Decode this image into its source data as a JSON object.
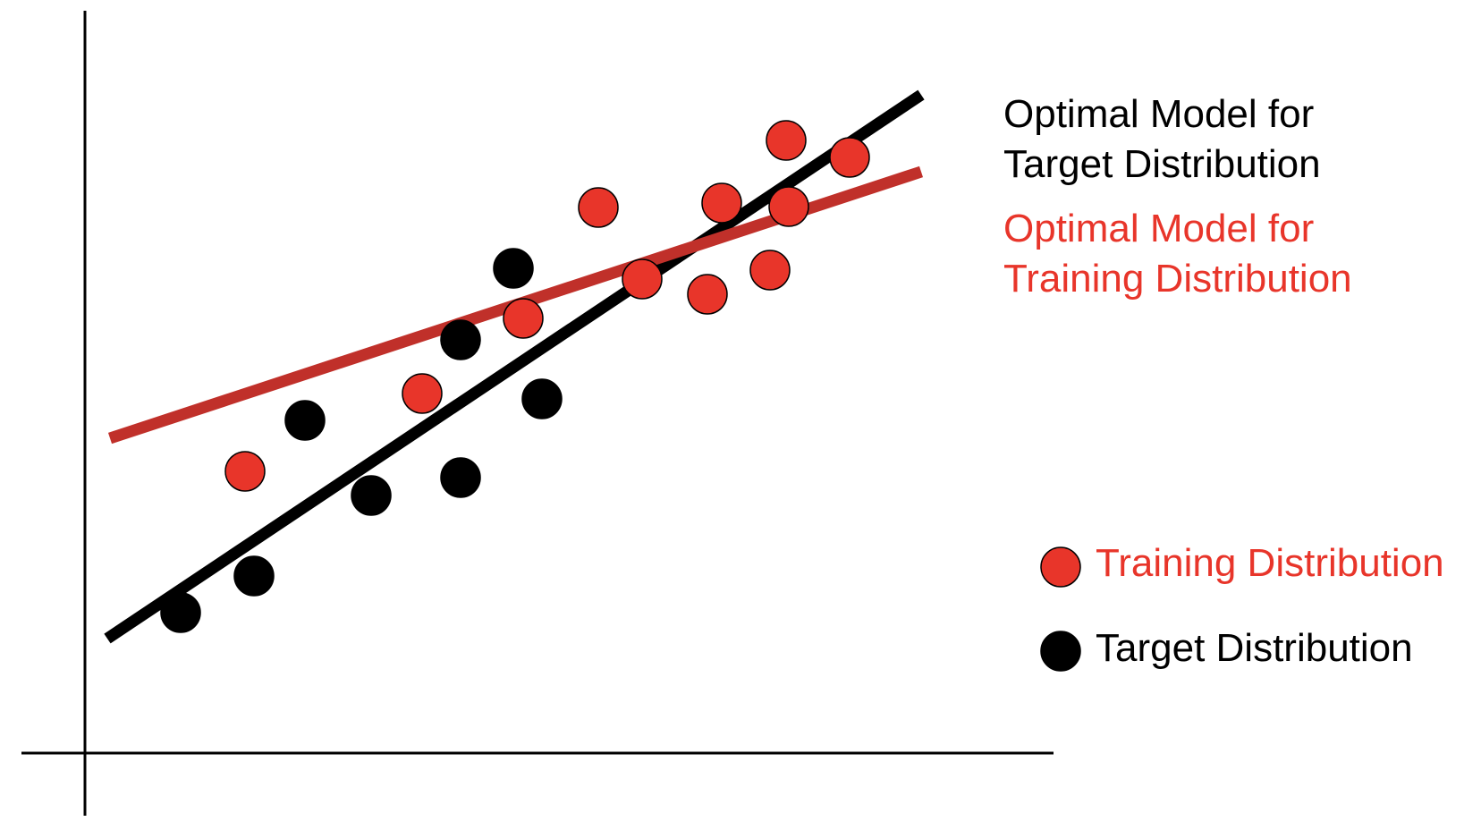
{
  "chart_data": {
    "type": "scatter",
    "title": "",
    "xlabel": "",
    "ylabel": "",
    "xlim": [
      0,
      1093
    ],
    "ylim": [
      0,
      776
    ],
    "grid": false,
    "colors": {
      "training": "#e8352a",
      "training_line": "#c0302a",
      "target": "#000000"
    },
    "series": [
      {
        "name": "Training Distribution",
        "color": "#e8352a",
        "points": [
          [
            179,
            315
          ],
          [
            377,
            402
          ],
          [
            490,
            486
          ],
          [
            574,
            610
          ],
          [
            623,
            530
          ],
          [
            696,
            513
          ],
          [
            712,
            615
          ],
          [
            766,
            540
          ],
          [
            784,
            685
          ],
          [
            787,
            611
          ],
          [
            855,
            666
          ]
        ]
      },
      {
        "name": "Target Distribution",
        "color": "#000000",
        "points": [
          [
            107,
            157
          ],
          [
            189,
            198
          ],
          [
            246,
            372
          ],
          [
            320,
            288
          ],
          [
            420,
            462
          ],
          [
            420,
            308
          ],
          [
            479,
            542
          ],
          [
            511,
            396
          ]
        ]
      }
    ],
    "fit_lines": [
      {
        "name": "Optimal Model for Target Distribution",
        "color": "#000000",
        "points": [
          [
            25,
            128
          ],
          [
            935,
            736
          ]
        ]
      },
      {
        "name": "Optimal Model for Training Distribution",
        "color": "#c0302a",
        "points": [
          [
            28,
            352
          ],
          [
            935,
            650
          ]
        ]
      }
    ],
    "annotations": {
      "target_model": [
        "Optimal Model for",
        "Target Distribution"
      ],
      "training_model": [
        "Optimal Model for",
        "Training Distribution"
      ]
    },
    "legend": {
      "placement": "right",
      "items": [
        {
          "label": "Training Distribution",
          "color": "#e8352a"
        },
        {
          "label": "Target Distribution",
          "color": "#000000"
        }
      ]
    }
  }
}
